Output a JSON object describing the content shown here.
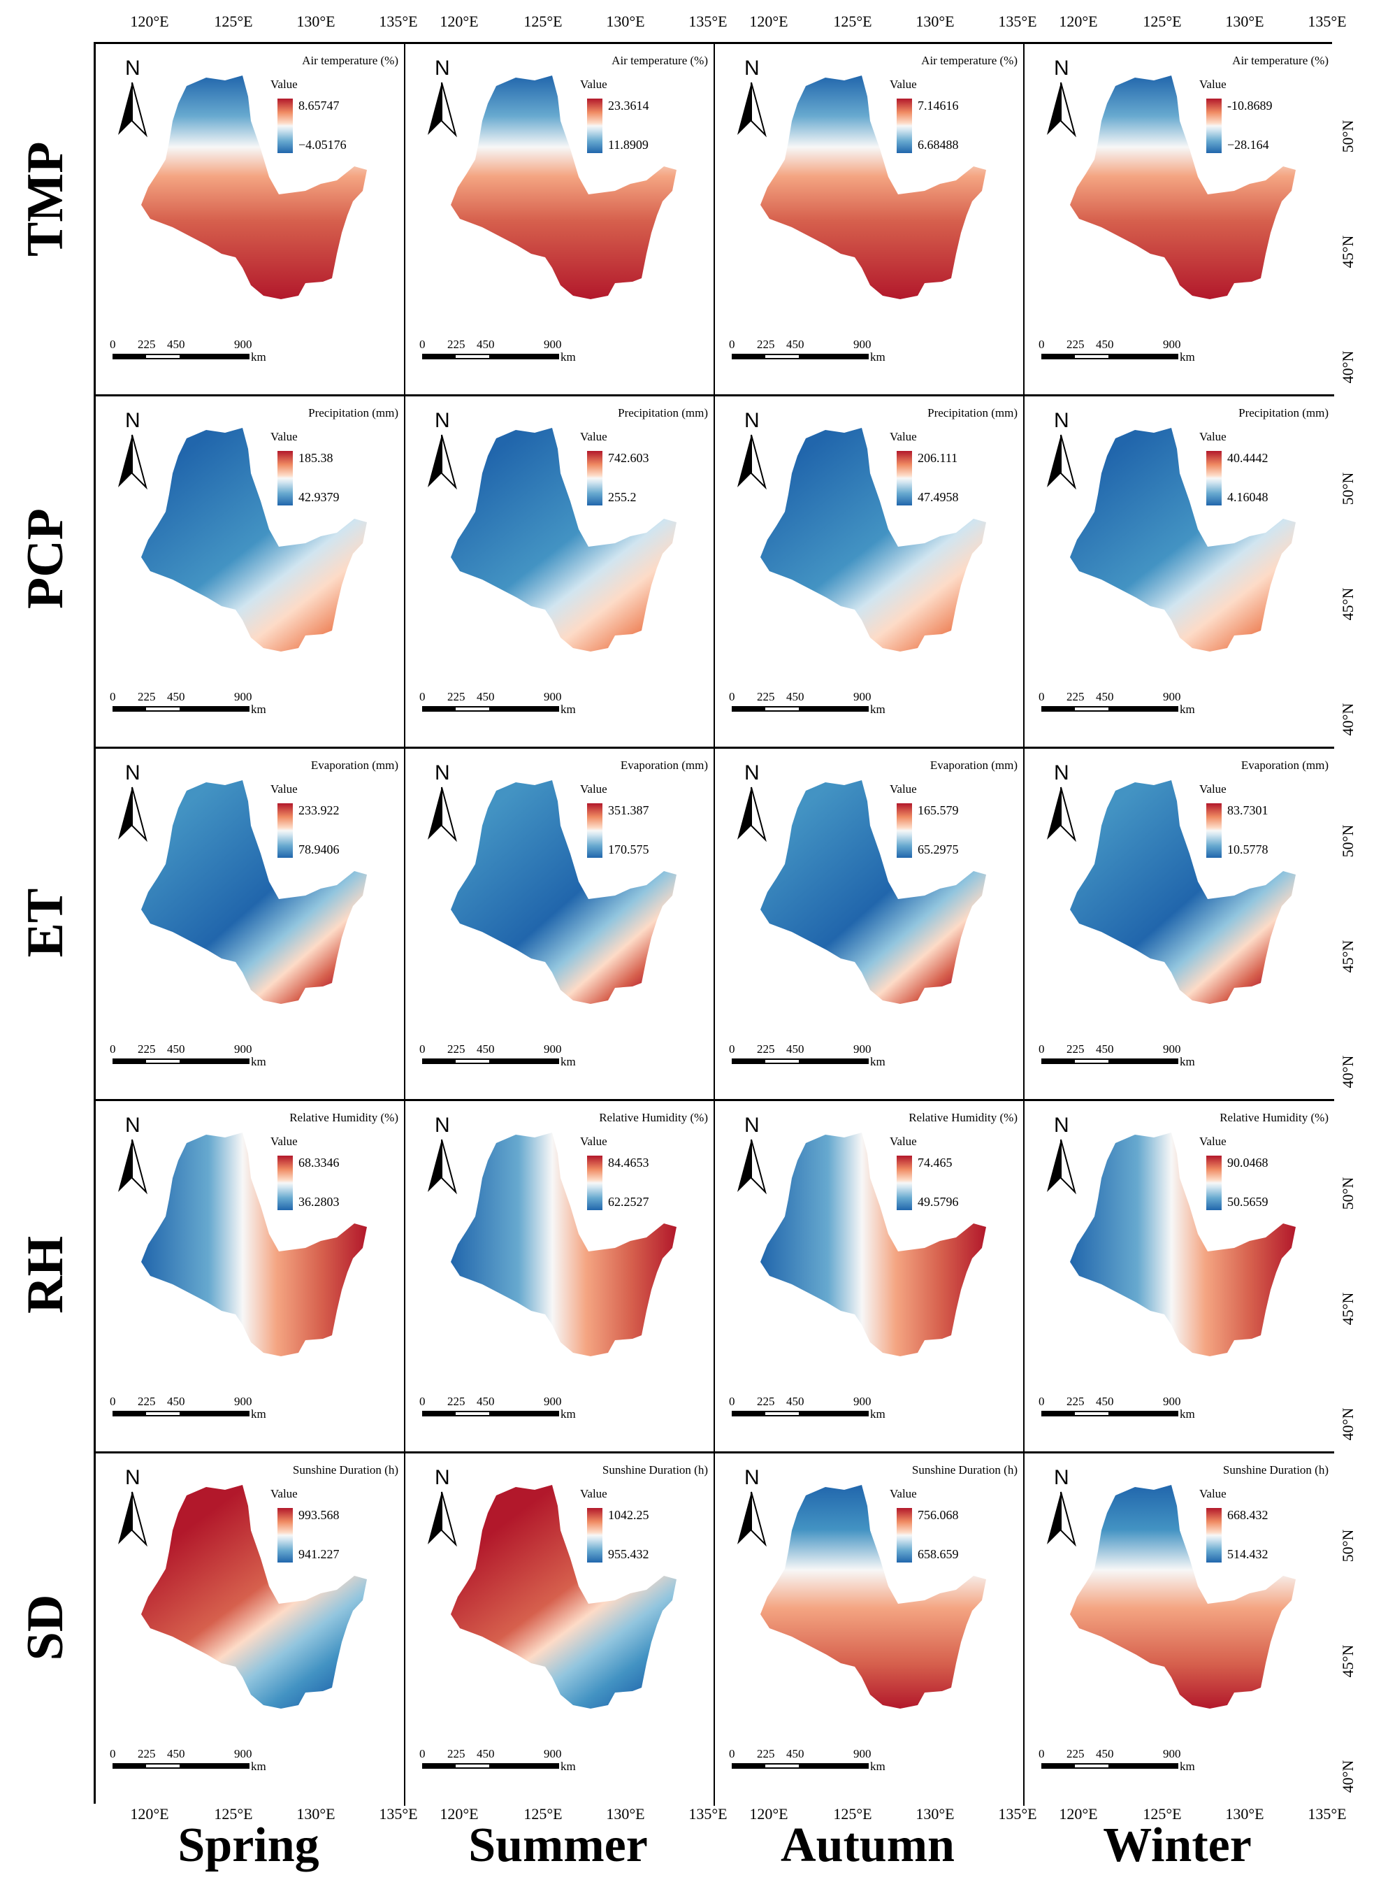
{
  "columns": [
    {
      "label": "Spring"
    },
    {
      "label": "Summer"
    },
    {
      "label": "Autumn"
    },
    {
      "label": "Winter"
    }
  ],
  "rows": [
    {
      "label": "TMP",
      "legend_title": "Air temperature (%)",
      "maps": [
        {
          "max": "8.65747",
          "min": "−4.05176",
          "pattern": "tmp"
        },
        {
          "max": "23.3614",
          "min": "11.8909",
          "pattern": "tmp"
        },
        {
          "max": "7.14616",
          "min": "6.68488",
          "pattern": "tmp"
        },
        {
          "max": "-10.8689",
          "min": "−28.164",
          "pattern": "tmp"
        }
      ]
    },
    {
      "label": "PCP",
      "legend_title": "Precipitation (mm)",
      "maps": [
        {
          "max": "185.38",
          "min": "42.9379",
          "pattern": "pcp"
        },
        {
          "max": "742.603",
          "min": "255.2",
          "pattern": "pcp"
        },
        {
          "max": "206.111",
          "min": "47.4958",
          "pattern": "pcp"
        },
        {
          "max": "40.4442",
          "min": "4.16048",
          "pattern": "pcp"
        }
      ]
    },
    {
      "label": "ET",
      "legend_title": "Evaporation (mm)",
      "maps": [
        {
          "max": "233.922",
          "min": "78.9406",
          "pattern": "et"
        },
        {
          "max": "351.387",
          "min": "170.575",
          "pattern": "et"
        },
        {
          "max": "165.579",
          "min": "65.2975",
          "pattern": "et"
        },
        {
          "max": "83.7301",
          "min": "10.5778",
          "pattern": "et"
        }
      ]
    },
    {
      "label": "RH",
      "legend_title": "Relative Humidity (%)",
      "maps": [
        {
          "max": "68.3346",
          "min": "36.2803",
          "pattern": "rh"
        },
        {
          "max": "84.4653",
          "min": "62.2527",
          "pattern": "rh"
        },
        {
          "max": "74.465",
          "min": "49.5796",
          "pattern": "rh"
        },
        {
          "max": "90.0468",
          "min": "50.5659",
          "pattern": "rh"
        }
      ]
    },
    {
      "label": "SD",
      "legend_title": "Sunshine Duration (h)",
      "maps": [
        {
          "max": "993.568",
          "min": "941.227",
          "pattern": "sd_a"
        },
        {
          "max": "1042.25",
          "min": "955.432",
          "pattern": "sd_a"
        },
        {
          "max": "756.068",
          "min": "658.659",
          "pattern": "sd_b"
        },
        {
          "max": "668.432",
          "min": "514.432",
          "pattern": "sd_b"
        }
      ]
    }
  ],
  "legend_sub": "Value",
  "north_label": "N",
  "scale": {
    "labels": [
      "0",
      "225",
      "450",
      "900"
    ],
    "unit": "km"
  },
  "lon_labels": [
    "120°E",
    "125°E",
    "130°E",
    "135°E"
  ],
  "lat_labels": [
    "50°N",
    "45°N",
    "40°N"
  ],
  "colors": {
    "high": "#b2182b",
    "mid": "#f7f7f7",
    "low": "#2166ac"
  }
}
